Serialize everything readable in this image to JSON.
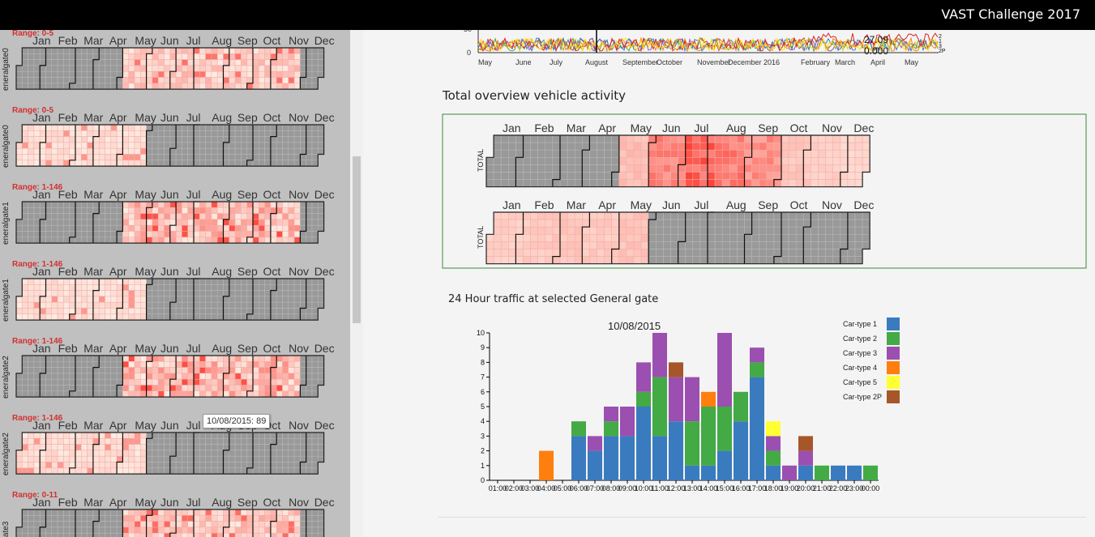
{
  "app_title": "VAST Challenge 2017",
  "months_short": [
    "Jan",
    "Feb",
    "Mar",
    "Apr",
    "May",
    "Jun",
    "Jul",
    "Aug",
    "Sep",
    "Oct",
    "Nov",
    "Dec"
  ],
  "left_panel": {
    "gates": [
      {
        "range": "Range: 0-5",
        "label": "eneralgate0",
        "active": [
          4,
          5,
          6,
          7,
          8,
          9,
          10
        ],
        "intensity": 0.35
      },
      {
        "range": "Range: 0-5",
        "label": "eneralgate0",
        "active": [
          0,
          1,
          2,
          3,
          4
        ],
        "intensity": 0.15
      },
      {
        "range": "Range: 1-146",
        "label": "eneralgate1",
        "active": [
          4,
          5,
          6,
          7,
          8,
          9,
          10
        ],
        "intensity": 0.55
      },
      {
        "range": "Range: 1-146",
        "label": "eneralgate1",
        "active": [
          0,
          1,
          2,
          3,
          4
        ],
        "intensity": 0.15
      },
      {
        "range": "Range: 1-146",
        "label": "eneralgate2",
        "active": [
          4,
          5,
          6,
          7,
          8,
          9,
          10
        ],
        "intensity": 0.55
      },
      {
        "range": "Range: 1-146",
        "label": "eneralgate2",
        "active": [
          0,
          1,
          2,
          3,
          4
        ],
        "intensity": 0.15
      },
      {
        "range": "Range: 0-11",
        "label": "ealgate3",
        "active": [
          4,
          5,
          6,
          7,
          8,
          9,
          10
        ],
        "intensity": 0.4
      }
    ],
    "tooltip": "10/08/2015: 89"
  },
  "timeline": {
    "labels": [
      "May",
      "June",
      "July",
      "August",
      "September",
      "October",
      "November",
      "December",
      "2016",
      "February",
      "March",
      "April",
      "May"
    ],
    "y_ticks": [
      "0",
      "50"
    ],
    "overlay_values": [
      "27.09",
      "0.000"
    ],
    "legend_labels": [
      "2",
      "1",
      "3",
      "2P"
    ]
  },
  "overview": {
    "title": "Total overview vehicle activity",
    "row_label": "TOTAL",
    "rows": [
      {
        "intensity": [
          0,
          0,
          0,
          0,
          0.25,
          0.55,
          0.75,
          0.6,
          0.5,
          0.2,
          0.15,
          0.12
        ]
      },
      {
        "intensity": [
          0.15,
          0.18,
          0.2,
          0.18,
          0.22,
          0,
          0,
          0,
          0,
          0,
          0,
          0
        ]
      }
    ]
  },
  "traffic": {
    "title": "24 Hour traffic at selected General gate",
    "legend": [
      {
        "label": "Car-type   1",
        "color": "#3a7bbf"
      },
      {
        "label": "Car-type   2",
        "color": "#43aa45"
      },
      {
        "label": "Car-type   3",
        "color": "#9b4fb0"
      },
      {
        "label": "Car-type   4",
        "color": "#ff7f0e"
      },
      {
        "label": "Car-type   5",
        "color": "#ffff33"
      },
      {
        "label": "Car-type 2P",
        "color": "#a65628"
      }
    ]
  },
  "chart_data": {
    "type": "bar",
    "stacked": true,
    "title": "10/08/2015",
    "xlabel": "",
    "ylabel": "",
    "ylim": [
      0,
      10
    ],
    "y_ticks": [
      0,
      1,
      2,
      3,
      4,
      5,
      6,
      7,
      8,
      9,
      10
    ],
    "categories": [
      "01:00",
      "02:00",
      "03:00",
      "04:00",
      "05:00",
      "06:00",
      "07:00",
      "08:00",
      "09:00",
      "10:00",
      "11:00",
      "12:00",
      "13:00",
      "14:00",
      "15:00",
      "16:00",
      "17:00",
      "18:00",
      "19:00",
      "20:00",
      "21:00",
      "22:00",
      "23:00",
      "00:00"
    ],
    "series": [
      {
        "name": "Car-type   1",
        "color": "#3a7bbf",
        "values": [
          0,
          0,
          0,
          0,
          0,
          3,
          2,
          3,
          3,
          5,
          3,
          4,
          1,
          1,
          2,
          4,
          7,
          1,
          0,
          1,
          0,
          1,
          1,
          0
        ]
      },
      {
        "name": "Car-type   2",
        "color": "#43aa45",
        "values": [
          0,
          0,
          0,
          0,
          0,
          1,
          0,
          1,
          0,
          1,
          4,
          0,
          3,
          4,
          3,
          2,
          1,
          1,
          0,
          0,
          1,
          0,
          0,
          1
        ]
      },
      {
        "name": "Car-type   3",
        "color": "#9b4fb0",
        "values": [
          0,
          0,
          0,
          0,
          0,
          0,
          1,
          1,
          2,
          2,
          3,
          3,
          3,
          0,
          5,
          0,
          1,
          1,
          1,
          1,
          0,
          0,
          0,
          0
        ]
      },
      {
        "name": "Car-type   4",
        "color": "#ff7f0e",
        "values": [
          0,
          0,
          0,
          2,
          0,
          0,
          0,
          0,
          0,
          0,
          0,
          0,
          0,
          1,
          0,
          0,
          0,
          0,
          0,
          0,
          0,
          0,
          0,
          0
        ]
      },
      {
        "name": "Car-type   5",
        "color": "#ffff33",
        "values": [
          0,
          0,
          0,
          0,
          0,
          0,
          0,
          0,
          0,
          0,
          0,
          0,
          0,
          0,
          0,
          0,
          0,
          1,
          0,
          0,
          0,
          0,
          0,
          0
        ]
      },
      {
        "name": "Car-type 2P",
        "color": "#a65628",
        "values": [
          0,
          0,
          0,
          0,
          0,
          0,
          0,
          0,
          0,
          0,
          0,
          1,
          0,
          0,
          0,
          0,
          0,
          0,
          0,
          1,
          0,
          0,
          0,
          0
        ]
      }
    ]
  }
}
